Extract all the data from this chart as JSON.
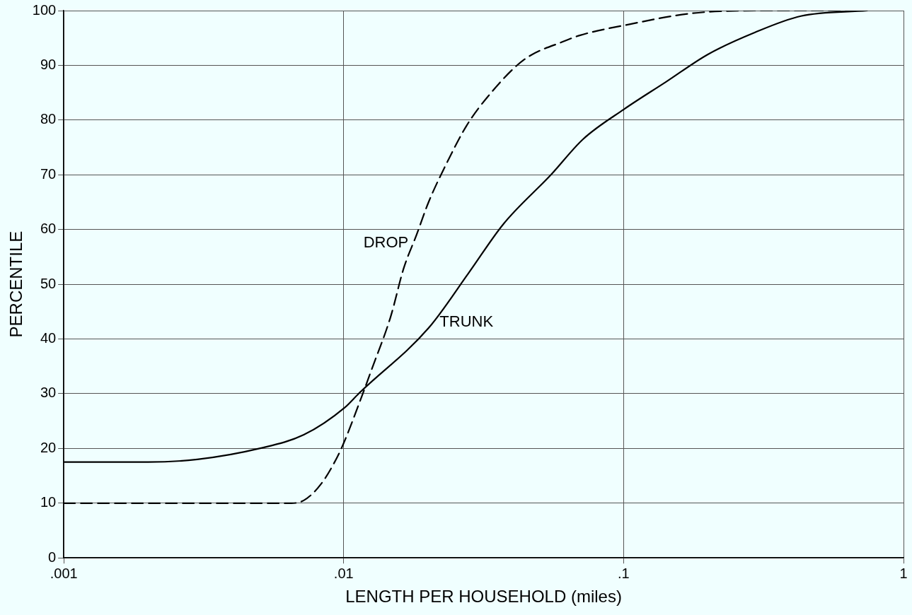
{
  "chart_data": {
    "type": "line",
    "xlabel": "LENGTH PER HOUSEHOLD (miles)",
    "ylabel": "PERCENTILE",
    "log": "x",
    "grid": true,
    "legend": false,
    "marker": "none",
    "xlim": [
      0.001,
      1
    ],
    "xticks": [
      {
        "value": 0.001,
        "label": ".001"
      },
      {
        "value": 0.01,
        "label": ".01"
      },
      {
        "value": 0.1,
        "label": ".1"
      },
      {
        "value": 1,
        "label": "1"
      }
    ],
    "ylim": [
      0,
      100
    ],
    "yticks": [
      0,
      10,
      20,
      30,
      40,
      50,
      60,
      70,
      80,
      90,
      100
    ],
    "series": [
      {
        "name": "DROP",
        "color": "#000000",
        "line_style": "dashed",
        "x": [
          0.001,
          0.002,
          0.004,
          0.0065,
          0.0072,
          0.0083,
          0.0095,
          0.0101,
          0.0116,
          0.0126,
          0.0147,
          0.0164,
          0.0182,
          0.0201,
          0.0238,
          0.0275,
          0.033,
          0.044,
          0.062,
          0.07,
          0.105,
          0.175,
          0.31,
          0.74
        ],
        "values": [
          10,
          10,
          10,
          10,
          10.5,
          13.5,
          18.5,
          21.5,
          29.5,
          34.5,
          44,
          53,
          59,
          65,
          73,
          79,
          84.5,
          91,
          94.5,
          95.5,
          97.5,
          99.5,
          100,
          100
        ]
      },
      {
        "name": "TRUNK",
        "color": "#000000",
        "line_style": "solid",
        "x": [
          0.001,
          0.002,
          0.003,
          0.005,
          0.0072,
          0.0101,
          0.0113,
          0.0201,
          0.0279,
          0.0372,
          0.055,
          0.0716,
          0.1005,
          0.142,
          0.2,
          0.294,
          0.43,
          0.74
        ],
        "values": [
          17.5,
          17.5,
          18,
          20,
          22.5,
          27.5,
          30,
          42,
          52,
          61,
          70,
          76.5,
          82,
          87,
          92,
          96,
          99,
          100
        ]
      }
    ]
  }
}
